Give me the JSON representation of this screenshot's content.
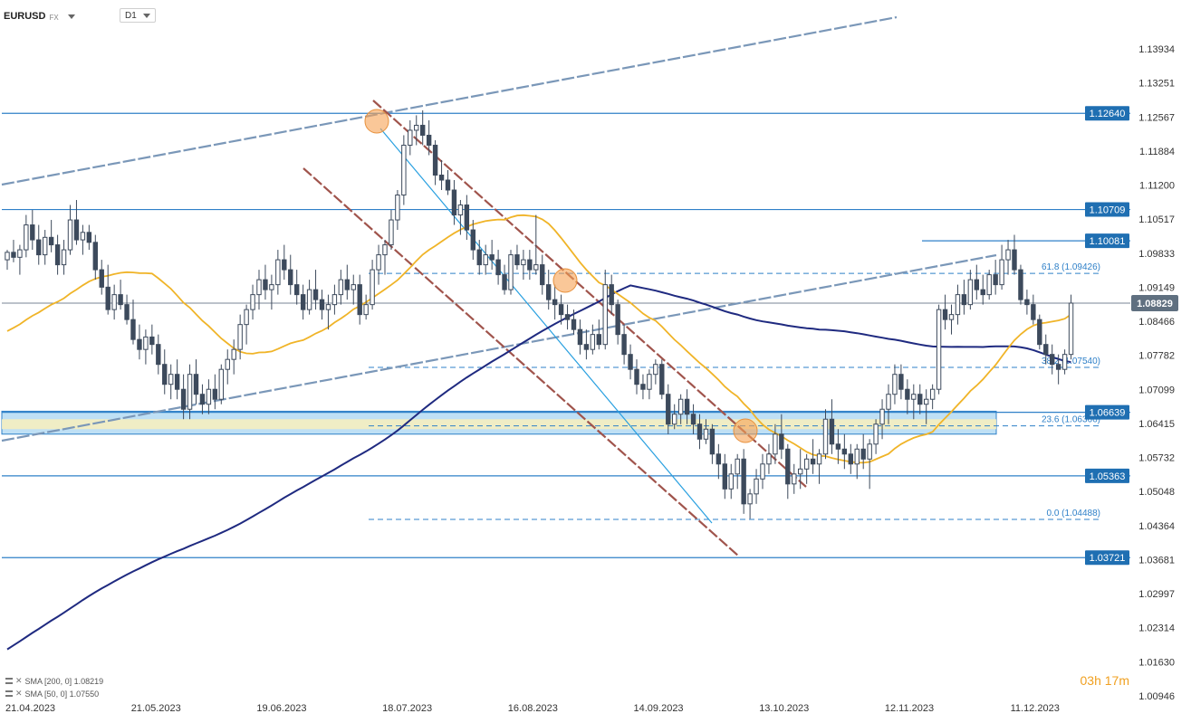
{
  "symbol": "EURUSD",
  "exchange": "FX",
  "timeframe": "D1",
  "timer": "03h 17m",
  "indicators": [
    {
      "label": "SMA [200, 0] 1.08219"
    },
    {
      "label": "SMA [50, 0] 1.07550"
    }
  ],
  "colors": {
    "candle": "#3d4a5c",
    "sma200": "#1f2a80",
    "sma50": "#f0b428",
    "levelLine": "#2f80c8",
    "tagBg": "#1f6fb2",
    "lastBg": "#607080",
    "channel": "#a0544c",
    "wedge": "#7a97b8",
    "highlight": "#f7a254",
    "zoneBlue": "#bfe0f5",
    "zoneYellow": "#f5eec0"
  },
  "chart_data": {
    "type": "candlestick",
    "y_ticks": [
      "1.13934",
      "1.13251",
      "1.12567",
      "1.11884",
      "1.11200",
      "1.10517",
      "1.09833",
      "1.09149",
      "1.08466",
      "1.07782",
      "1.07099",
      "1.06415",
      "1.05732",
      "1.05048",
      "1.04364",
      "1.03681",
      "1.02997",
      "1.02314",
      "1.01630",
      "1.00946"
    ],
    "x_ticks": [
      "21.04.2023",
      "21.05.2023",
      "19.06.2023",
      "18.07.2023",
      "16.08.2023",
      "14.09.2023",
      "13.10.2023",
      "12.11.2023",
      "11.12.2023"
    ],
    "levels": [
      "1.12640",
      "1.10709",
      "1.10081",
      "1.06639",
      "1.05363",
      "1.03721"
    ],
    "last_price": "1.08829",
    "fib_levels": [
      {
        "label": "61.8 (1.09426)",
        "value": 1.09426
      },
      {
        "label": "38.2 (1.07540)",
        "value": 1.0754
      },
      {
        "label": "23.6 (1.06366)",
        "value": 1.06366
      },
      {
        "label": "0.0 (1.04488)",
        "value": 1.04488
      }
    ],
    "zone": {
      "high": 1.0666,
      "low": 1.062
    },
    "candles": [
      [
        1.097,
        1.099,
        1.095,
        1.0985
      ],
      [
        1.0985,
        1.101,
        1.0965,
        1.0975
      ],
      [
        1.0975,
        1.1,
        1.094,
        1.099
      ],
      [
        1.099,
        1.106,
        1.0975,
        1.104
      ],
      [
        1.104,
        1.107,
        1.099,
        1.101
      ],
      [
        1.101,
        1.104,
        1.096,
        1.098
      ],
      [
        1.098,
        1.103,
        1.096,
        1.1015
      ],
      [
        1.1015,
        1.105,
        1.0985,
        1.1
      ],
      [
        1.1,
        1.102,
        1.094,
        1.096
      ],
      [
        1.096,
        1.101,
        1.094,
        1.099
      ],
      [
        1.099,
        1.108,
        1.098,
        1.105
      ],
      [
        1.105,
        1.109,
        1.1,
        1.101
      ],
      [
        1.101,
        1.104,
        1.098,
        1.1025
      ],
      [
        1.1025,
        1.104,
        1.099,
        1.1005
      ],
      [
        1.1005,
        1.102,
        1.093,
        1.095
      ],
      [
        1.095,
        1.097,
        1.09,
        1.0915
      ],
      [
        1.0915,
        1.096,
        1.086,
        1.087
      ],
      [
        1.087,
        1.092,
        1.085,
        1.09
      ],
      [
        1.09,
        1.093,
        1.087,
        1.088
      ],
      [
        1.088,
        1.09,
        1.084,
        1.085
      ],
      [
        1.085,
        1.089,
        1.08,
        1.081
      ],
      [
        1.081,
        1.084,
        1.077,
        1.079
      ],
      [
        1.079,
        1.083,
        1.076,
        1.0815
      ],
      [
        1.0815,
        1.084,
        1.078,
        1.08
      ],
      [
        1.08,
        1.082,
        1.074,
        1.076
      ],
      [
        1.076,
        1.079,
        1.07,
        1.072
      ],
      [
        1.072,
        1.076,
        1.069,
        1.074
      ],
      [
        1.074,
        1.077,
        1.069,
        1.071
      ],
      [
        1.071,
        1.074,
        1.065,
        1.067
      ],
      [
        1.067,
        1.076,
        1.065,
        1.074
      ],
      [
        1.074,
        1.077,
        1.068,
        1.07
      ],
      [
        1.07,
        1.072,
        1.066,
        1.068
      ],
      [
        1.068,
        1.073,
        1.066,
        1.071
      ],
      [
        1.071,
        1.074,
        1.067,
        1.069
      ],
      [
        1.069,
        1.076,
        1.068,
        1.075
      ],
      [
        1.075,
        1.079,
        1.072,
        1.077
      ],
      [
        1.077,
        1.081,
        1.074,
        1.079
      ],
      [
        1.079,
        1.086,
        1.077,
        1.084
      ],
      [
        1.084,
        1.088,
        1.08,
        1.087
      ],
      [
        1.087,
        1.092,
        1.085,
        1.09
      ],
      [
        1.09,
        1.095,
        1.087,
        1.093
      ],
      [
        1.093,
        1.096,
        1.089,
        1.091
      ],
      [
        1.091,
        1.094,
        1.087,
        1.092
      ],
      [
        1.092,
        1.099,
        1.09,
        1.097
      ],
      [
        1.097,
        1.1,
        1.093,
        1.095
      ],
      [
        1.095,
        1.098,
        1.09,
        1.092
      ],
      [
        1.092,
        1.095,
        1.088,
        1.09
      ],
      [
        1.09,
        1.092,
        1.085,
        1.087
      ],
      [
        1.087,
        1.093,
        1.086,
        1.091
      ],
      [
        1.091,
        1.095,
        1.087,
        1.089
      ],
      [
        1.089,
        1.091,
        1.085,
        1.087
      ],
      [
        1.087,
        1.09,
        1.083,
        1.088
      ],
      [
        1.088,
        1.092,
        1.086,
        1.09
      ],
      [
        1.09,
        1.095,
        1.088,
        1.093
      ],
      [
        1.093,
        1.096,
        1.089,
        1.091
      ],
      [
        1.091,
        1.094,
        1.088,
        1.092
      ],
      [
        1.092,
        1.094,
        1.084,
        1.086
      ],
      [
        1.086,
        1.09,
        1.085,
        1.088
      ],
      [
        1.088,
        1.097,
        1.087,
        1.095
      ],
      [
        1.095,
        1.1,
        1.092,
        1.098
      ],
      [
        1.098,
        1.101,
        1.094,
        1.1
      ],
      [
        1.1,
        1.107,
        1.099,
        1.105
      ],
      [
        1.105,
        1.111,
        1.103,
        1.11
      ],
      [
        1.11,
        1.122,
        1.108,
        1.12
      ],
      [
        1.12,
        1.125,
        1.118,
        1.123
      ],
      [
        1.123,
        1.126,
        1.12,
        1.124
      ],
      [
        1.124,
        1.127,
        1.12,
        1.122
      ],
      [
        1.122,
        1.125,
        1.118,
        1.12
      ],
      [
        1.12,
        1.121,
        1.112,
        1.114
      ],
      [
        1.114,
        1.117,
        1.111,
        1.113
      ],
      [
        1.113,
        1.115,
        1.11,
        1.111
      ],
      [
        1.111,
        1.113,
        1.104,
        1.106
      ],
      [
        1.106,
        1.109,
        1.102,
        1.108
      ],
      [
        1.108,
        1.11,
        1.101,
        1.103
      ],
      [
        1.103,
        1.105,
        1.097,
        1.099
      ],
      [
        1.099,
        1.101,
        1.094,
        1.096
      ],
      [
        1.096,
        1.1,
        1.094,
        1.098
      ],
      [
        1.098,
        1.101,
        1.095,
        1.097
      ],
      [
        1.097,
        1.099,
        1.092,
        1.094
      ],
      [
        1.094,
        1.096,
        1.09,
        1.091
      ],
      [
        1.091,
        1.099,
        1.09,
        1.098
      ],
      [
        1.098,
        1.1,
        1.095,
        1.096
      ],
      [
        1.096,
        1.099,
        1.093,
        1.097
      ],
      [
        1.097,
        1.099,
        1.093,
        1.095
      ],
      [
        1.095,
        1.106,
        1.094,
        1.096
      ],
      [
        1.096,
        1.098,
        1.09,
        1.092
      ],
      [
        1.092,
        1.095,
        1.087,
        1.089
      ],
      [
        1.089,
        1.092,
        1.085,
        1.088
      ],
      [
        1.088,
        1.09,
        1.084,
        1.086
      ],
      [
        1.086,
        1.088,
        1.083,
        1.085
      ],
      [
        1.085,
        1.087,
        1.082,
        1.083
      ],
      [
        1.083,
        1.085,
        1.078,
        1.08
      ],
      [
        1.08,
        1.083,
        1.077,
        1.079
      ],
      [
        1.079,
        1.084,
        1.078,
        1.082
      ],
      [
        1.082,
        1.085,
        1.079,
        1.08
      ],
      [
        1.08,
        1.095,
        1.079,
        1.092
      ],
      [
        1.092,
        1.094,
        1.086,
        1.088
      ],
      [
        1.088,
        1.089,
        1.08,
        1.082
      ],
      [
        1.082,
        1.084,
        1.076,
        1.078
      ],
      [
        1.078,
        1.08,
        1.073,
        1.075
      ],
      [
        1.075,
        1.077,
        1.07,
        1.072
      ],
      [
        1.072,
        1.074,
        1.069,
        1.071
      ],
      [
        1.071,
        1.075,
        1.069,
        1.074
      ],
      [
        1.074,
        1.077,
        1.072,
        1.076
      ],
      [
        1.076,
        1.077,
        1.069,
        1.07
      ],
      [
        1.07,
        1.072,
        1.062,
        1.064
      ],
      [
        1.064,
        1.068,
        1.063,
        1.066
      ],
      [
        1.066,
        1.07,
        1.064,
        1.069
      ],
      [
        1.069,
        1.071,
        1.064,
        1.066
      ],
      [
        1.066,
        1.068,
        1.062,
        1.064
      ],
      [
        1.064,
        1.066,
        1.059,
        1.061
      ],
      [
        1.061,
        1.065,
        1.06,
        1.063
      ],
      [
        1.063,
        1.064,
        1.056,
        1.058
      ],
      [
        1.058,
        1.06,
        1.053,
        1.056
      ],
      [
        1.056,
        1.058,
        1.049,
        1.051
      ],
      [
        1.051,
        1.056,
        1.049,
        1.054
      ],
      [
        1.054,
        1.058,
        1.051,
        1.057
      ],
      [
        1.057,
        1.059,
        1.046,
        1.048
      ],
      [
        1.048,
        1.051,
        1.045,
        1.05
      ],
      [
        1.05,
        1.055,
        1.048,
        1.053
      ],
      [
        1.053,
        1.058,
        1.051,
        1.056
      ],
      [
        1.056,
        1.06,
        1.054,
        1.058
      ],
      [
        1.058,
        1.064,
        1.056,
        1.062
      ],
      [
        1.062,
        1.066,
        1.057,
        1.059
      ],
      [
        1.059,
        1.06,
        1.049,
        1.052
      ],
      [
        1.052,
        1.056,
        1.05,
        1.054
      ],
      [
        1.054,
        1.059,
        1.051,
        1.055
      ],
      [
        1.055,
        1.058,
        1.052,
        1.057
      ],
      [
        1.057,
        1.061,
        1.054,
        1.056
      ],
      [
        1.056,
        1.059,
        1.052,
        1.058
      ],
      [
        1.058,
        1.067,
        1.057,
        1.065
      ],
      [
        1.065,
        1.069,
        1.058,
        1.06
      ],
      [
        1.06,
        1.063,
        1.056,
        1.059
      ],
      [
        1.059,
        1.062,
        1.055,
        1.058
      ],
      [
        1.058,
        1.06,
        1.054,
        1.056
      ],
      [
        1.056,
        1.06,
        1.053,
        1.059
      ],
      [
        1.059,
        1.062,
        1.055,
        1.057
      ],
      [
        1.057,
        1.061,
        1.051,
        1.06
      ],
      [
        1.06,
        1.065,
        1.058,
        1.064
      ],
      [
        1.064,
        1.069,
        1.061,
        1.067
      ],
      [
        1.067,
        1.072,
        1.064,
        1.07
      ],
      [
        1.07,
        1.076,
        1.068,
        1.074
      ],
      [
        1.074,
        1.076,
        1.069,
        1.071
      ],
      [
        1.071,
        1.073,
        1.066,
        1.069
      ],
      [
        1.069,
        1.072,
        1.065,
        1.07
      ],
      [
        1.07,
        1.072,
        1.066,
        1.068
      ],
      [
        1.068,
        1.071,
        1.064,
        1.069
      ],
      [
        1.069,
        1.072,
        1.067,
        1.071
      ],
      [
        1.071,
        1.088,
        1.07,
        1.087
      ],
      [
        1.087,
        1.09,
        1.083,
        1.085
      ],
      [
        1.085,
        1.088,
        1.082,
        1.086
      ],
      [
        1.086,
        1.092,
        1.084,
        1.09
      ],
      [
        1.09,
        1.093,
        1.086,
        1.088
      ],
      [
        1.088,
        1.095,
        1.087,
        1.093
      ],
      [
        1.093,
        1.096,
        1.089,
        1.091
      ],
      [
        1.091,
        1.094,
        1.088,
        1.09
      ],
      [
        1.09,
        1.095,
        1.089,
        1.094
      ],
      [
        1.094,
        1.097,
        1.09,
        1.092
      ],
      [
        1.092,
        1.1,
        1.091,
        1.097
      ],
      [
        1.097,
        1.101,
        1.094,
        1.099
      ],
      [
        1.099,
        1.102,
        1.094,
        1.095
      ],
      [
        1.095,
        1.096,
        1.088,
        1.089
      ],
      [
        1.089,
        1.091,
        1.086,
        1.088
      ],
      [
        1.088,
        1.09,
        1.084,
        1.085
      ],
      [
        1.085,
        1.086,
        1.079,
        1.08
      ],
      [
        1.08,
        1.082,
        1.076,
        1.078
      ],
      [
        1.078,
        1.08,
        1.074,
        1.076
      ],
      [
        1.076,
        1.078,
        1.072,
        1.075
      ],
      [
        1.075,
        1.079,
        1.074,
        1.078
      ],
      [
        1.078,
        1.09,
        1.077,
        1.0883
      ]
    ]
  }
}
